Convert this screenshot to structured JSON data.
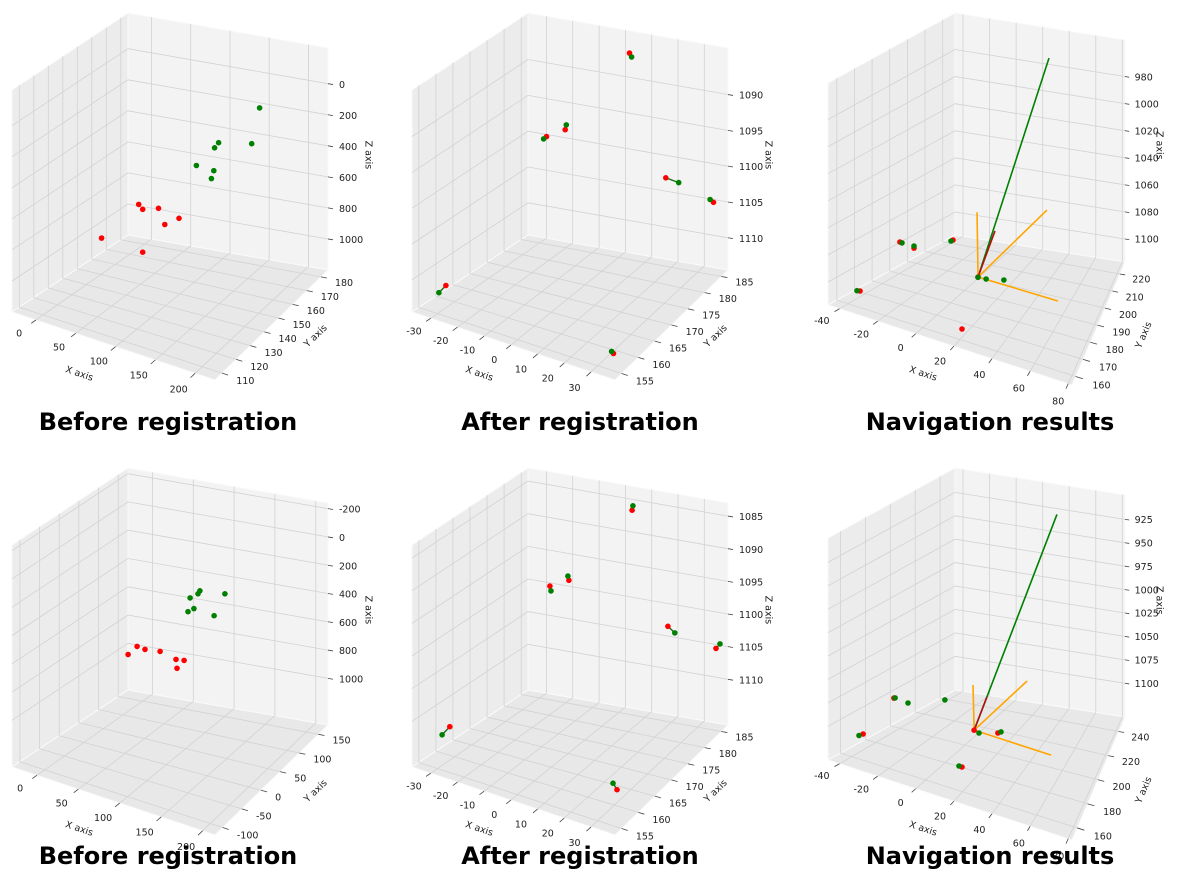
{
  "chart_data": [
    {
      "type": "scatter3d",
      "title": "Before registration",
      "xlabel": "X axis",
      "ylabel": "Y axis",
      "zlabel": "Z axis",
      "xlim": [
        -30,
        225
      ],
      "ylim": [
        105,
        185
      ],
      "zlim": [
        -230,
        1200
      ],
      "z_inverted": true,
      "grid": true,
      "xticks": [
        0,
        50,
        100,
        150,
        200
      ],
      "yticks": [
        110,
        120,
        130,
        140,
        150,
        160,
        170,
        180
      ],
      "zticks": [
        0,
        200,
        400,
        600,
        800,
        1000
      ],
      "connect_pairs": false,
      "series": [
        {
          "color": "red",
          "x": [
            57,
            62,
            82,
            90,
            108,
            10,
            62
          ],
          "y": [
            145,
            145,
            145,
            145,
            145,
            145,
            145
          ],
          "z": [
            642,
            667,
            634,
            728,
            665,
            920,
            943
          ]
        },
        {
          "color": "green",
          "x": [
            210,
            158,
            153,
            200,
            130,
            152,
            149
          ],
          "y": [
            145,
            145,
            145,
            145,
            145,
            145,
            145
          ],
          "z": [
            -179,
            113,
            152,
            65,
            296,
            301,
            356
          ]
        }
      ],
      "segments": []
    },
    {
      "type": "scatter3d",
      "title": "After registration",
      "xlabel": "X axis",
      "ylabel": "Y axis",
      "zlabel": "Z axis",
      "xlim": [
        -37,
        39
      ],
      "ylim": [
        153,
        187
      ],
      "zlim": [
        1083.5,
        1114.5
      ],
      "z_inverted": true,
      "grid": true,
      "xticks": [
        -30,
        -20,
        -10,
        0,
        10,
        20,
        30
      ],
      "yticks": [
        155,
        160,
        165,
        170,
        175,
        180,
        185
      ],
      "zticks": [
        1090,
        1095,
        1100,
        1105,
        1110
      ],
      "connect_pairs": true,
      "pair_color": "#1a6e1a",
      "series": [
        {
          "color": "red",
          "x": [
            5.9,
            -21.2,
            -14.1,
            24,
            37.8,
            -33,
            34.2
          ],
          "y": [
            183.6,
            180.2,
            180.2,
            180.2,
            183.6,
            159.8,
            156.4
          ],
          "z": [
            1085.0,
            1097.4,
            1095.9,
            1099.7,
            1103.6,
            1112.5,
            1112.9
          ]
        },
        {
          "color": "green",
          "x": [
            6.7,
            -22.3,
            -13.7,
            28.9,
            36.5,
            -35.6,
            33.5
          ],
          "y": [
            183.6,
            180.2,
            180.2,
            180.2,
            183.6,
            159.8,
            156.4
          ],
          "z": [
            1085.5,
            1097.8,
            1095.2,
            1100.0,
            1103.3,
            1113.8,
            1112.7
          ]
        }
      ],
      "segments": []
    },
    {
      "type": "scatter3d",
      "title": "Navigation results",
      "xlabel": "X axis",
      "ylabel": "Y axis",
      "zlabel": "Z axis",
      "xlim": [
        -46,
        82
      ],
      "ylim": [
        155,
        227
      ],
      "zlim": [
        953,
        1117
      ],
      "z_inverted": true,
      "grid": true,
      "xticks": [
        -40,
        -20,
        0,
        20,
        40,
        60,
        80
      ],
      "yticks": [
        160,
        170,
        180,
        190,
        200,
        210,
        220
      ],
      "zticks": [
        980,
        1000,
        1020,
        1040,
        1060,
        1080,
        1100
      ],
      "connect_pairs": false,
      "series": [
        {
          "color": "red",
          "x": [
            -40.8,
            -32.1,
            -8,
            -42.3,
            19.6,
            7.5
          ],
          "y": [
            191,
            191,
            191,
            169.4,
            162.2,
            191
          ],
          "z": [
            1094.7,
            1096.5,
            1083.1,
            1115.5,
            1111.6,
            1105.7
          ]
        },
        {
          "color": "green",
          "x": [
            -39.5,
            -32.1,
            -9.2,
            -44,
            12.5,
            23.5,
            7.5
          ],
          "y": [
            191,
            191,
            191,
            169.4,
            191,
            191,
            191
          ],
          "z": [
            1095,
            1095,
            1084.2,
            1116,
            1105.6,
            1102.9,
            1105.9
          ]
        }
      ],
      "segments": [
        {
          "color": "green",
          "x": [
            7.5,
            36.7
          ],
          "y": [
            191,
            212.6
          ],
          "z": [
            1105.7,
            958
          ]
        },
        {
          "color": "orange",
          "x": [
            7.5,
            6.9
          ],
          "y": [
            191,
            191
          ],
          "z": [
            1105.7,
            1058
          ]
        },
        {
          "color": "orange",
          "x": [
            7.5,
            35.3
          ],
          "y": [
            191,
            212.6
          ],
          "z": [
            1105.7,
            1070.6
          ]
        },
        {
          "color": "orange",
          "x": [
            7.5,
            56.9
          ],
          "y": [
            191,
            191
          ],
          "z": [
            1105.7,
            1108.1
          ]
        },
        {
          "color": "#b01010",
          "x": [
            7.5,
            18
          ],
          "y": [
            191,
            191
          ],
          "z": [
            1105.7,
            1068.4
          ]
        }
      ]
    },
    {
      "type": "scatter3d",
      "title": "Before registration",
      "xlabel": "X axis",
      "ylabel": "Y axis",
      "zlabel": "Z axis",
      "xlim": [
        -30,
        215
      ],
      "ylim": [
        -120,
        175
      ],
      "zlim": [
        -240,
        1330
      ],
      "z_inverted": true,
      "grid": true,
      "xticks": [
        0,
        50,
        100,
        150,
        200
      ],
      "yticks": [
        -100,
        -50,
        0,
        50,
        100,
        150
      ],
      "zticks": [
        -200,
        0,
        200,
        400,
        600,
        800,
        1000
      ],
      "connect_pairs": false,
      "series": [
        {
          "color": "red",
          "x": [
            40.6,
            51.6,
            61.2,
            79.5,
            98.9,
            108.7,
            100.1
          ],
          "y": [
            27.5,
            27.5,
            27.5,
            27.5,
            27.5,
            27.5,
            27.5
          ],
          "z": [
            702,
            628,
            635,
            622,
            650,
            642,
            711
          ]
        },
        {
          "color": "green",
          "x": [
            116,
            128,
            125.6,
            158.4,
            113.5,
            120.7,
            145.2
          ],
          "y": [
            27.5,
            27.5,
            27.5,
            27.5,
            27.5,
            27.5,
            27.5
          ],
          "z": [
            189,
            121,
            146,
            97,
            291,
            258,
            272
          ]
        }
      ],
      "segments": []
    },
    {
      "type": "scatter3d",
      "title": "After registration",
      "xlabel": "X axis",
      "ylabel": "Y axis",
      "zlabel": "Z axis",
      "xlim": [
        -37,
        39
      ],
      "ylim": [
        153,
        187
      ],
      "zlim": [
        1083,
        1117
      ],
      "z_inverted": true,
      "grid": true,
      "xticks": [
        -30,
        -20,
        -10,
        0,
        10,
        20,
        30
      ],
      "yticks": [
        155,
        160,
        165,
        170,
        175,
        180,
        185
      ],
      "zticks": [
        1085,
        1090,
        1095,
        1100,
        1105,
        1110
      ],
      "connect_pairs": true,
      "pair_color": "#1a6e1a",
      "series": [
        {
          "color": "red",
          "x": [
            6.9,
            -19.9,
            -12.7,
            24.8,
            36.6,
            -31.5,
            35.5
          ],
          "y": [
            183.6,
            180.2,
            180.2,
            180.2,
            185.3,
            159.8,
            156.4
          ],
          "z": [
            1084.9,
            1097.3,
            1095.8,
            1099.7,
            1104.6,
            1112.5,
            1112.2
          ]
        },
        {
          "color": "green",
          "x": [
            7.2,
            -19.5,
            -13.1,
            27.4,
            38.1,
            -34.4,
            34
          ],
          "y": [
            183.6,
            180.2,
            180.2,
            180.2,
            185.3,
            159.8,
            156.4
          ],
          "z": [
            1084.2,
            1098,
            1095.2,
            1100.5,
            1103.8,
            1114.1,
            1111.4
          ]
        }
      ],
      "segments": []
    },
    {
      "type": "scatter3d",
      "title": "Navigation results",
      "xlabel": "X axis",
      "ylabel": "Y axis",
      "zlabel": "Z axis",
      "xlim": [
        -46,
        82
      ],
      "ylim": [
        150,
        252
      ],
      "zlim": [
        899,
        1136
      ],
      "z_inverted": true,
      "grid": true,
      "xticks": [
        -40,
        -20,
        0,
        20,
        40,
        60,
        80
      ],
      "yticks": [
        160,
        180,
        200,
        220,
        240
      ],
      "zticks": [
        925,
        950,
        975,
        1000,
        1025,
        1050,
        1075,
        1100
      ],
      "connect_pairs": false,
      "series": [
        {
          "color": "red",
          "x": [
            -40.6,
            -44.5,
            19.6,
            19.8,
            5.1
          ],
          "y": [
            170.4,
            201,
            160.2,
            201,
            201
          ],
          "z": [
            1120.1,
            1106.6,
            1110.1,
            1115.2,
            1118.7
          ]
        },
        {
          "color": "green",
          "x": [
            -42.9,
            -43.8,
            -35.8,
            -13,
            18,
            21.7,
            8.1
          ],
          "y": [
            170.4,
            201,
            201,
            201,
            160.2,
            201,
            201
          ],
          "z": [
            1123,
            1106.1,
            1108,
            1094.5,
            1110,
            1113.2,
            1120.4
          ]
        }
      ],
      "segments": [
        {
          "color": "green",
          "x": [
            5.1,
            42.2
          ],
          "y": [
            201,
            231.6
          ],
          "z": [
            1118.7,
            906
          ]
        },
        {
          "color": "orange",
          "x": [
            5.1,
            4.4
          ],
          "y": [
            201,
            201
          ],
          "z": [
            1118.7,
            1070.8
          ]
        },
        {
          "color": "orange",
          "x": [
            5.1,
            21.5
          ],
          "y": [
            201,
            231.6
          ],
          "z": [
            1118.7,
            1090.3
          ]
        },
        {
          "color": "orange",
          "x": [
            5.1,
            52.7
          ],
          "y": [
            201,
            201
          ],
          "z": [
            1118.7,
            1124.1
          ]
        },
        {
          "color": "#b01010",
          "x": [
            5.1,
            13
          ],
          "y": [
            201,
            201
          ],
          "z": [
            1118.7,
            1079.8
          ]
        }
      ]
    }
  ]
}
